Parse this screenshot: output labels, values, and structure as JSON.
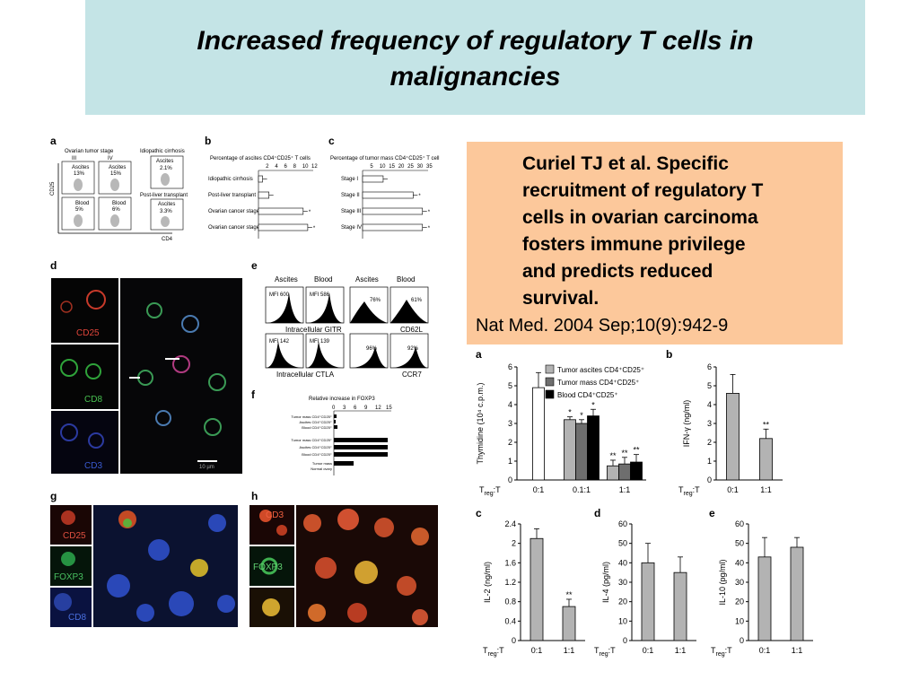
{
  "slide": {
    "title_line1": "Increased frequency of  regulatory T cells in",
    "title_line2": "malignancies"
  },
  "citation": {
    "lines": [
      "Curiel TJ  et al. Specific",
      "recruitment of regulatory T",
      "cells in ovarian carcinoma",
      "fosters immune privilege",
      "and predicts reduced",
      "survival."
    ],
    "journal": "Nat Med. 2004 Sep;10(9):942-9"
  },
  "panel_a": {
    "label": "a",
    "group_title": "Ovarian tumor stage",
    "col1": "III",
    "col2": "IV",
    "ylabel": "CD25",
    "xlabel": "CD4",
    "boxes": [
      {
        "name": "Ascites",
        "pct": "13%"
      },
      {
        "name": "Ascites",
        "pct": "15%"
      },
      {
        "name": "Blood",
        "pct": "5%"
      },
      {
        "name": "Blood",
        "pct": "6%"
      }
    ],
    "side_title": "Idiopathic cirrhosis",
    "side_box1": {
      "name": "Ascites",
      "pct": "2.1%"
    },
    "side_title2": "Post-liver transplant",
    "side_box2": {
      "name": "Ascites",
      "pct": "3.3%"
    }
  },
  "panel_b": {
    "label": "b",
    "title": "Percentage of ascites CD4⁺CD25⁺ T cells",
    "ticks": [
      "2",
      "4",
      "6",
      "8",
      "10",
      "12"
    ],
    "rows": [
      "Idiopathic cirrhosis",
      "Post-liver transplant",
      "Ovarian cancer stage III",
      "Ovarian cancer stage IV"
    ],
    "values": [
      0.9,
      2.3,
      9.8,
      10.8
    ],
    "xmax": 12,
    "stars": [
      "",
      "",
      "*",
      "*"
    ]
  },
  "panel_c": {
    "label": "c",
    "title": "Percentage of tumor mass CD4⁺CD25⁺ T cell",
    "ticks": [
      "5",
      "10",
      "15",
      "20",
      "25",
      "30",
      "35"
    ],
    "rows": [
      "Stage I",
      "Stage II",
      "Stage III",
      "Stage IV"
    ],
    "values": [
      11,
      27,
      32,
      32
    ],
    "xmax": 35,
    "stars": [
      "",
      "*",
      "*",
      "*"
    ]
  },
  "panel_d": {
    "label": "d",
    "channels": [
      "CD25",
      "CD8",
      "CD3"
    ],
    "scale_text": "10 µm"
  },
  "panel_e": {
    "label": "e",
    "headers": [
      "Ascites",
      "Blood",
      "Ascites",
      "Blood"
    ],
    "row1": [
      "MFI 600",
      "MFI 586",
      "76%",
      "61%"
    ],
    "row1_xlabel_left": "Intracellular GITR",
    "row1_xlabel_right": "CD62L",
    "row2": [
      "MFI 142",
      "MFI 139",
      "96%",
      "92%"
    ],
    "row2_xlabel_left": "Intracellular CTLA",
    "row2_xlabel_right": "CCR7"
  },
  "panel_f": {
    "label": "f",
    "title": "Relative increase in FOXP3",
    "ticks": [
      "0",
      "3",
      "6",
      "9",
      "12",
      "15"
    ],
    "rows": [
      "Tumor mass CD4⁺CD25⁺",
      "Ascites CD4⁺CD25⁺",
      "Blood CD4⁺CD25⁺",
      "Tumor mass CD4⁺CD25⁺",
      "Ascites CD4⁺CD25⁺",
      "Blood CD4⁺CD25⁺",
      "Tumor mass",
      "Normal ovary"
    ]
  },
  "panel_g": {
    "label": "g",
    "channels": [
      "CD25",
      "FOXP3",
      "CD8"
    ]
  },
  "panel_h": {
    "label": "h",
    "channels": [
      "CD3",
      "FOXP3"
    ]
  },
  "chart_data": [
    {
      "id": "a",
      "type": "bar",
      "label": "a",
      "ylabel": "Thymidine (10⁴ c.p.m.)",
      "xlabel": "T",
      "xlabel_sub": "reg",
      "xlabel_suffix": ":T",
      "ylim": [
        0,
        6
      ],
      "yticks": [
        0,
        1,
        2,
        3,
        4,
        5,
        6
      ],
      "categories": [
        "0:1",
        "0.1:1",
        "1:1"
      ],
      "legend": [
        "Tumor ascites CD4⁺CD25⁺",
        "Tumor mass CD4⁺CD25⁺",
        "Blood CD4⁺CD25⁺"
      ],
      "bars": [
        {
          "group": 0,
          "value": 4.9,
          "err": 0.8,
          "fill": "#ffffff",
          "star": ""
        },
        {
          "group": 1,
          "value": 3.2,
          "err": 0.15,
          "fill": "#b3b3b3",
          "star": "*"
        },
        {
          "group": 1,
          "value": 3.0,
          "err": 0.2,
          "fill": "#6e6e6e",
          "star": "*"
        },
        {
          "group": 1,
          "value": 3.4,
          "err": 0.35,
          "fill": "#000000",
          "star": "*"
        },
        {
          "group": 2,
          "value": 0.75,
          "err": 0.3,
          "fill": "#b3b3b3",
          "star": "**"
        },
        {
          "group": 2,
          "value": 0.85,
          "err": 0.35,
          "fill": "#6e6e6e",
          "star": "**"
        },
        {
          "group": 2,
          "value": 0.95,
          "err": 0.4,
          "fill": "#000000",
          "star": "**"
        }
      ]
    },
    {
      "id": "b",
      "type": "bar",
      "label": "b",
      "ylabel": "IFN-γ (ng/ml)",
      "xlabel": "T",
      "xlabel_sub": "reg",
      "xlabel_suffix": ":T",
      "ylim": [
        0,
        6
      ],
      "yticks": [
        0,
        1,
        2,
        3,
        4,
        5,
        6
      ],
      "categories": [
        "0:1",
        "1:1"
      ],
      "values": [
        4.6,
        2.2
      ],
      "errors": [
        1.0,
        0.5
      ],
      "stars": [
        "",
        "**"
      ]
    },
    {
      "id": "c",
      "type": "bar",
      "label": "c",
      "ylabel": "IL-2 (ng/ml)",
      "xlabel": "T",
      "xlabel_sub": "reg",
      "xlabel_suffix": ":T",
      "ylim": [
        0,
        2.4
      ],
      "yticks": [
        0,
        0.4,
        0.8,
        1.2,
        1.6,
        2.0,
        2.4
      ],
      "categories": [
        "0:1",
        "1:1"
      ],
      "values": [
        2.1,
        0.7
      ],
      "errors": [
        0.2,
        0.15
      ],
      "stars": [
        "",
        "**"
      ]
    },
    {
      "id": "d",
      "type": "bar",
      "label": "d",
      "ylabel": "IL-4 (pg/ml)",
      "xlabel": "T",
      "xlabel_sub": "reg",
      "xlabel_suffix": ":T",
      "ylim": [
        0,
        60
      ],
      "yticks": [
        0,
        10,
        20,
        30,
        40,
        50,
        60
      ],
      "categories": [
        "0:1",
        "1:1"
      ],
      "values": [
        40,
        35
      ],
      "errors": [
        10,
        8
      ],
      "stars": [
        "",
        ""
      ]
    },
    {
      "id": "e",
      "type": "bar",
      "label": "e",
      "ylabel": "IL-10 (pg/ml)",
      "xlabel": "T",
      "xlabel_sub": "reg",
      "xlabel_suffix": ":T",
      "ylim": [
        0,
        60
      ],
      "yticks": [
        0,
        10,
        20,
        30,
        40,
        50,
        60
      ],
      "categories": [
        "0:1",
        "1:1"
      ],
      "values": [
        43,
        48
      ],
      "errors": [
        10,
        5
      ],
      "stars": [
        "",
        ""
      ]
    }
  ]
}
